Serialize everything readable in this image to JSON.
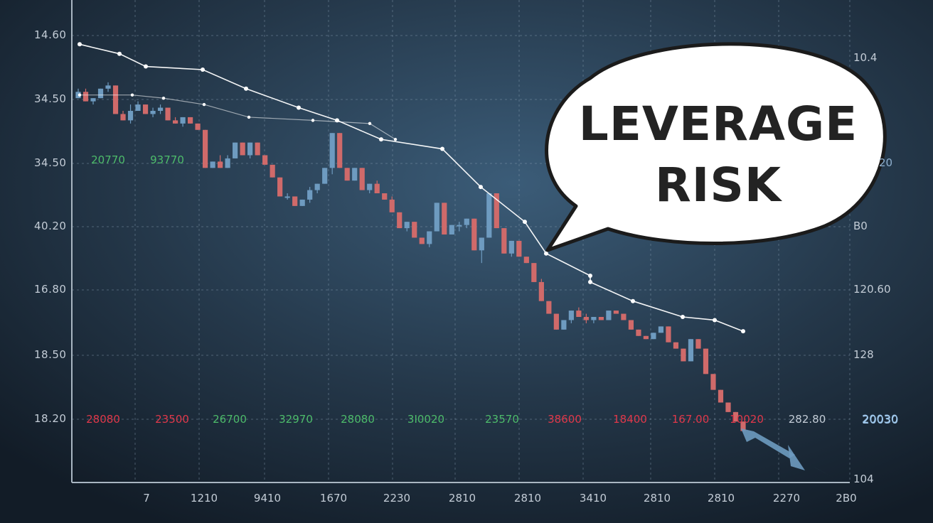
{
  "chart_data": {
    "type": "line",
    "title": "",
    "ylabels_left": [
      "14.60",
      "34.50",
      "34.50",
      "40.20",
      "16.80",
      "18.50",
      "18.20"
    ],
    "ylabels_right": [
      "10.4",
      "20",
      "B0",
      "120.60",
      "128",
      "20030",
      "104"
    ],
    "xlabels": [
      "7",
      "1210",
      "9410",
      "1670",
      "2230",
      "2810",
      "2810",
      "3410",
      "2810",
      "2810",
      "2270",
      "2B0"
    ],
    "annotations_top": [
      {
        "text": "20770",
        "tone": "up"
      },
      {
        "text": "93770",
        "tone": "up"
      }
    ],
    "annotations_bottom": [
      {
        "text": "28080",
        "tone": "down"
      },
      {
        "text": "23500",
        "tone": "down"
      },
      {
        "text": "26700",
        "tone": "up"
      },
      {
        "text": "32970",
        "tone": "up"
      },
      {
        "text": "28080",
        "tone": "up"
      },
      {
        "text": "3I0020",
        "tone": "up"
      },
      {
        "text": "23570",
        "tone": "up"
      },
      {
        "text": "38600",
        "tone": "down"
      },
      {
        "text": "18400",
        "tone": "down"
      },
      {
        "text": "167.00",
        "tone": "down"
      },
      {
        "text": "10020",
        "tone": "down"
      },
      {
        "text": "282.80",
        "tone": "neutral"
      },
      {
        "text": "20030",
        "tone": "blue"
      }
    ],
    "series": [
      {
        "values": [
          95,
          92,
          88,
          87,
          81,
          75,
          71,
          65,
          62,
          50,
          39,
          29,
          22,
          20,
          14,
          9,
          8,
          4.5
        ]
      },
      {
        "values": [
          79,
          79,
          78,
          76,
          72,
          71,
          70,
          65
        ]
      }
    ],
    "candles": {
      "up_color": "#6e9bc0",
      "down_color": "#d06a6a",
      "ohlc": [
        [
          78,
          81,
          78,
          80
        ],
        [
          80,
          81,
          77,
          77
        ],
        [
          77,
          78,
          76,
          78
        ],
        [
          78,
          81,
          78,
          81
        ],
        [
          81,
          83,
          80,
          82
        ],
        [
          82,
          82,
          73,
          73
        ],
        [
          73,
          74,
          71,
          71
        ],
        [
          71,
          76,
          70,
          74
        ],
        [
          74,
          77,
          74,
          76
        ],
        [
          76,
          76,
          73,
          73
        ],
        [
          73,
          75,
          72,
          74
        ],
        [
          74,
          76,
          73,
          75
        ],
        [
          75,
          74,
          71,
          71
        ],
        [
          71,
          72,
          70,
          70
        ],
        [
          70,
          72,
          69,
          72
        ],
        [
          72,
          72,
          70,
          70
        ],
        [
          70,
          70,
          68,
          68
        ],
        [
          68,
          68,
          56,
          56
        ],
        [
          56,
          58,
          56,
          58
        ],
        [
          58,
          60,
          56,
          56
        ],
        [
          56,
          60,
          56,
          59
        ],
        [
          59,
          64,
          59,
          64
        ],
        [
          64,
          64,
          60,
          60
        ],
        [
          60,
          64,
          59,
          64
        ],
        [
          64,
          64,
          60,
          60
        ],
        [
          60,
          60,
          57,
          57
        ],
        [
          57,
          57,
          53,
          53
        ],
        [
          53,
          53,
          47,
          47
        ],
        [
          47,
          48,
          46,
          47
        ],
        [
          47,
          47,
          44,
          44
        ],
        [
          44,
          46,
          44,
          46
        ],
        [
          46,
          50,
          45,
          49
        ],
        [
          49,
          51,
          48,
          51
        ],
        [
          51,
          56,
          51,
          56
        ],
        [
          56,
          67,
          54,
          67
        ],
        [
          67,
          67,
          56,
          56
        ],
        [
          56,
          56,
          52,
          52
        ],
        [
          52,
          56,
          52,
          56
        ],
        [
          56,
          56,
          49,
          49
        ],
        [
          49,
          51,
          48,
          51
        ],
        [
          51,
          52,
          48,
          48
        ],
        [
          48,
          48,
          46,
          46
        ],
        [
          46,
          47,
          42,
          42
        ],
        [
          42,
          42,
          37,
          37
        ],
        [
          37,
          39,
          36,
          39
        ],
        [
          39,
          39,
          34,
          34
        ],
        [
          34,
          34,
          32,
          32
        ],
        [
          32,
          36,
          31,
          36
        ],
        [
          36,
          45,
          36,
          45
        ],
        [
          45,
          45,
          35,
          35
        ],
        [
          35,
          38,
          35,
          38
        ],
        [
          38,
          39,
          36,
          38
        ],
        [
          38,
          40,
          37,
          40
        ],
        [
          40,
          40,
          30,
          30
        ],
        [
          30,
          34,
          26,
          34
        ],
        [
          34,
          48,
          34,
          48
        ],
        [
          48,
          48,
          37,
          37
        ],
        [
          37,
          37,
          29,
          29
        ],
        [
          29,
          33,
          28,
          33
        ],
        [
          33,
          33,
          28,
          28
        ],
        [
          28,
          28,
          26,
          26
        ],
        [
          26,
          26,
          20,
          20
        ],
        [
          20,
          21,
          14,
          14
        ],
        [
          14,
          14,
          10,
          10
        ],
        [
          10,
          10,
          5,
          5
        ],
        [
          5,
          8,
          5,
          8
        ],
        [
          8,
          11,
          7,
          11
        ],
        [
          11,
          12,
          9,
          9
        ],
        [
          9,
          10,
          7,
          8
        ],
        [
          8,
          9,
          7,
          9
        ],
        [
          9,
          9,
          8,
          8
        ],
        [
          8,
          11,
          8,
          11
        ],
        [
          11,
          11,
          10,
          10
        ],
        [
          10,
          10,
          8,
          8
        ],
        [
          8,
          8,
          5,
          5
        ],
        [
          5,
          5,
          3,
          3
        ],
        [
          3,
          3,
          2,
          2
        ],
        [
          2,
          4,
          2,
          4
        ],
        [
          4,
          6,
          4,
          6
        ],
        [
          6,
          6,
          1,
          1
        ],
        [
          1,
          1,
          -1,
          -1
        ],
        [
          -1,
          -1,
          -5,
          -5
        ],
        [
          -5,
          2,
          -5,
          2
        ],
        [
          2,
          2,
          -1,
          -1
        ],
        [
          -1,
          -1,
          -9,
          -9
        ],
        [
          -9,
          -9,
          -14,
          -14
        ],
        [
          -14,
          -14,
          -18,
          -18
        ],
        [
          -18,
          -18,
          -21,
          -21
        ],
        [
          -21,
          -21,
          -24,
          -24
        ],
        [
          -24,
          -24,
          -27,
          -27
        ]
      ]
    },
    "colors": {
      "background": "#1b2a38",
      "grid": "#8aa0b4",
      "line": "#ffffff",
      "up": "#6e9bc0",
      "down": "#d06a6a",
      "label_up": "#4dbb6a",
      "label_down": "#e0384a",
      "label_blue": "#9ec6ea"
    }
  },
  "callout": {
    "line1": "LEVERAGE",
    "line2": "RISK"
  }
}
